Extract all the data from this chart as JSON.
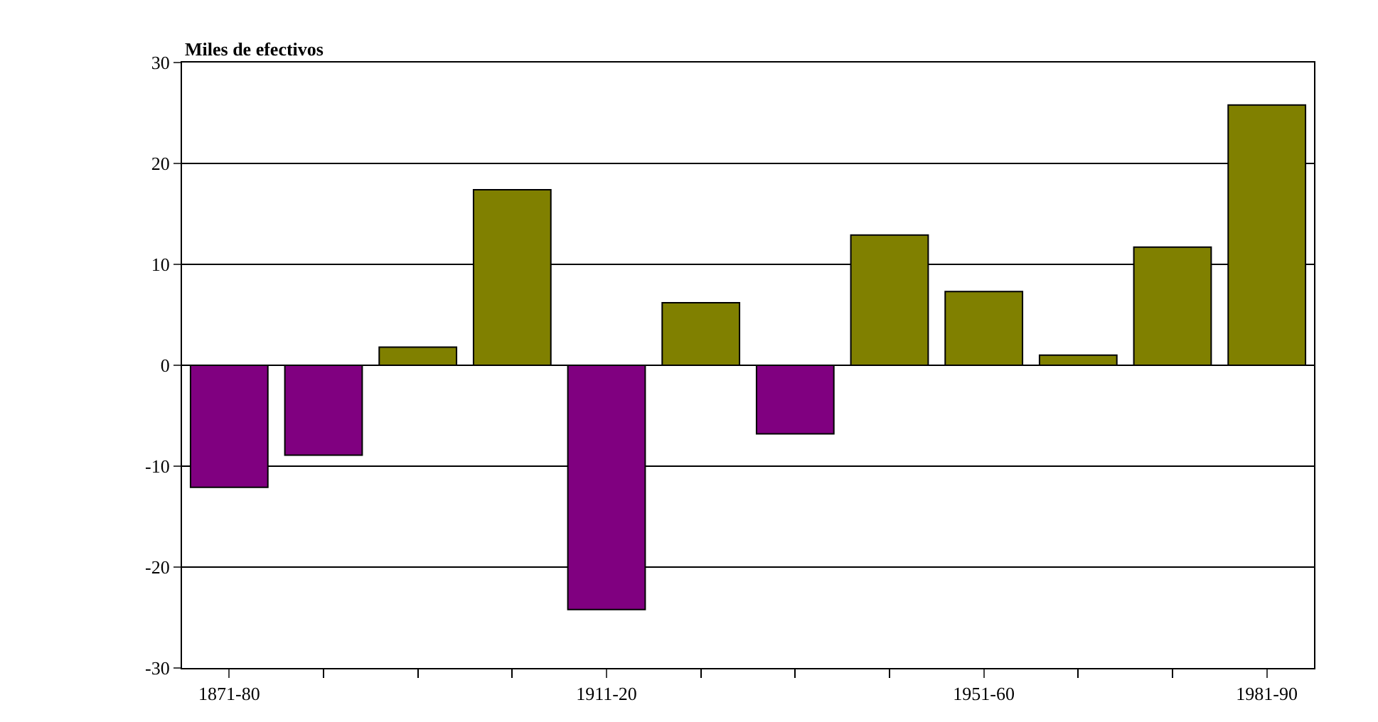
{
  "chart_data": {
    "type": "bar",
    "ylabel": "Miles de efectivos",
    "categories": [
      "1871-80",
      null,
      null,
      null,
      "1911-20",
      null,
      null,
      null,
      "1951-60",
      null,
      null,
      "1981-90"
    ],
    "values": [
      -12.1,
      -8.9,
      1.8,
      17.4,
      -24.2,
      6.2,
      -6.8,
      12.9,
      7.3,
      1.0,
      11.7,
      25.8
    ],
    "colors": [
      "#800080",
      "#800080",
      "#808000",
      "#808000",
      "#800080",
      "#808000",
      "#800080",
      "#808000",
      "#808000",
      "#808000",
      "#808000",
      "#808000"
    ],
    "ylim": [
      -30,
      30
    ],
    "yticks": [
      -30,
      -20,
      -10,
      0,
      10,
      20,
      30
    ],
    "grid": "y",
    "legend": false
  }
}
